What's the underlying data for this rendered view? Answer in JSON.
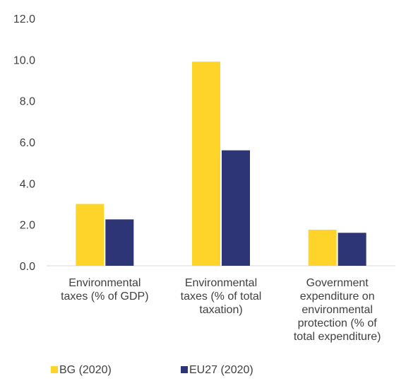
{
  "chart_data": {
    "type": "bar",
    "title": "",
    "xlabel": "",
    "ylabel": "",
    "ylim": [
      0,
      12
    ],
    "yticks": [
      "0.0",
      "2.0",
      "4.0",
      "6.0",
      "8.0",
      "10.0",
      "12.0"
    ],
    "grid": false,
    "legend_position": "bottom-left",
    "categories": [
      [
        "Environmental",
        "taxes (% of GDP)"
      ],
      [
        "Environmental",
        "taxes (% of total",
        "taxation)"
      ],
      [
        "Government",
        "expenditure on",
        "environmental",
        "protection (% of",
        "total expenditure)"
      ]
    ],
    "series": [
      {
        "name": "BG (2020)",
        "color": "#FFD42A",
        "values": [
          3.0,
          9.9,
          1.75
        ]
      },
      {
        "name": "EU27 (2020)",
        "color": "#2E3576",
        "values": [
          2.25,
          5.6,
          1.6
        ]
      }
    ]
  }
}
